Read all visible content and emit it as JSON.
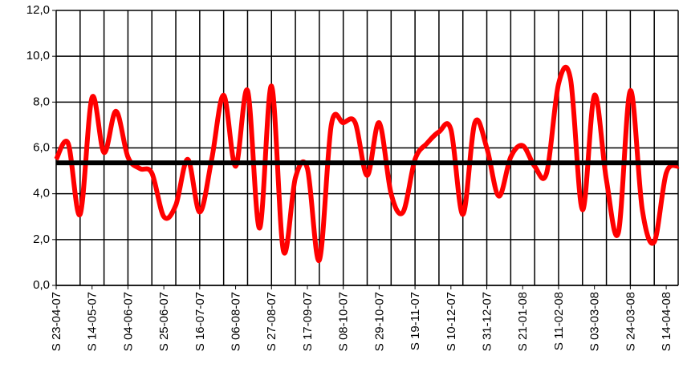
{
  "chart_data": {
    "type": "line",
    "categories": [
      "S 23-04-07",
      null,
      null,
      "S 14-05-07",
      null,
      null,
      "S 04-06-07",
      null,
      null,
      "S 25-06-07",
      null,
      null,
      "S 16-07-07",
      null,
      null,
      "S 06-08-07",
      null,
      null,
      "S 27-08-07",
      null,
      null,
      "S 17-09-07",
      null,
      null,
      "S 08-10-07",
      null,
      null,
      "S 29-10-07",
      null,
      null,
      "S 19-11-07",
      null,
      null,
      "S 10-12-07",
      null,
      null,
      "S 31-12-07",
      null,
      null,
      "S 21-01-08",
      null,
      null,
      "S 11-02-08",
      null,
      null,
      "S 03-03-08",
      null,
      null,
      "S 24-03-08",
      null,
      null,
      "S 14-04-08",
      null
    ],
    "series": [
      {
        "color": "#ff0000",
        "values": [
          5.5,
          6.2,
          3.1,
          8.2,
          5.8,
          7.6,
          5.6,
          5.1,
          4.9,
          3.0,
          3.5,
          5.5,
          3.2,
          5.5,
          8.3,
          5.2,
          8.5,
          2.5,
          8.7,
          1.5,
          4.7,
          5.1,
          1.1,
          7.0,
          7.1,
          7.1,
          4.8,
          7.1,
          4.0,
          3.2,
          5.5,
          6.2,
          6.7,
          6.8,
          3.1,
          7.1,
          6.0,
          3.9,
          5.6,
          6.1,
          5.2,
          4.9,
          8.8,
          9.0,
          3.3,
          8.3,
          4.6,
          2.3,
          8.5,
          3.3,
          1.9,
          4.9,
          5.2
        ]
      }
    ],
    "hline": {
      "value": 5.35,
      "color": "#000000"
    },
    "ylim": [
      0,
      12
    ],
    "yticks": [
      {
        "value": 0,
        "label": "0,0"
      },
      {
        "value": 2,
        "label": "2,0"
      },
      {
        "value": 4,
        "label": "4,0"
      },
      {
        "value": 6,
        "label": "6,0"
      },
      {
        "value": 8,
        "label": "8,0"
      },
      {
        "value": 10,
        "label": "10,0"
      },
      {
        "value": 12,
        "label": "12,0"
      }
    ],
    "grid": true,
    "smooth": true
  }
}
